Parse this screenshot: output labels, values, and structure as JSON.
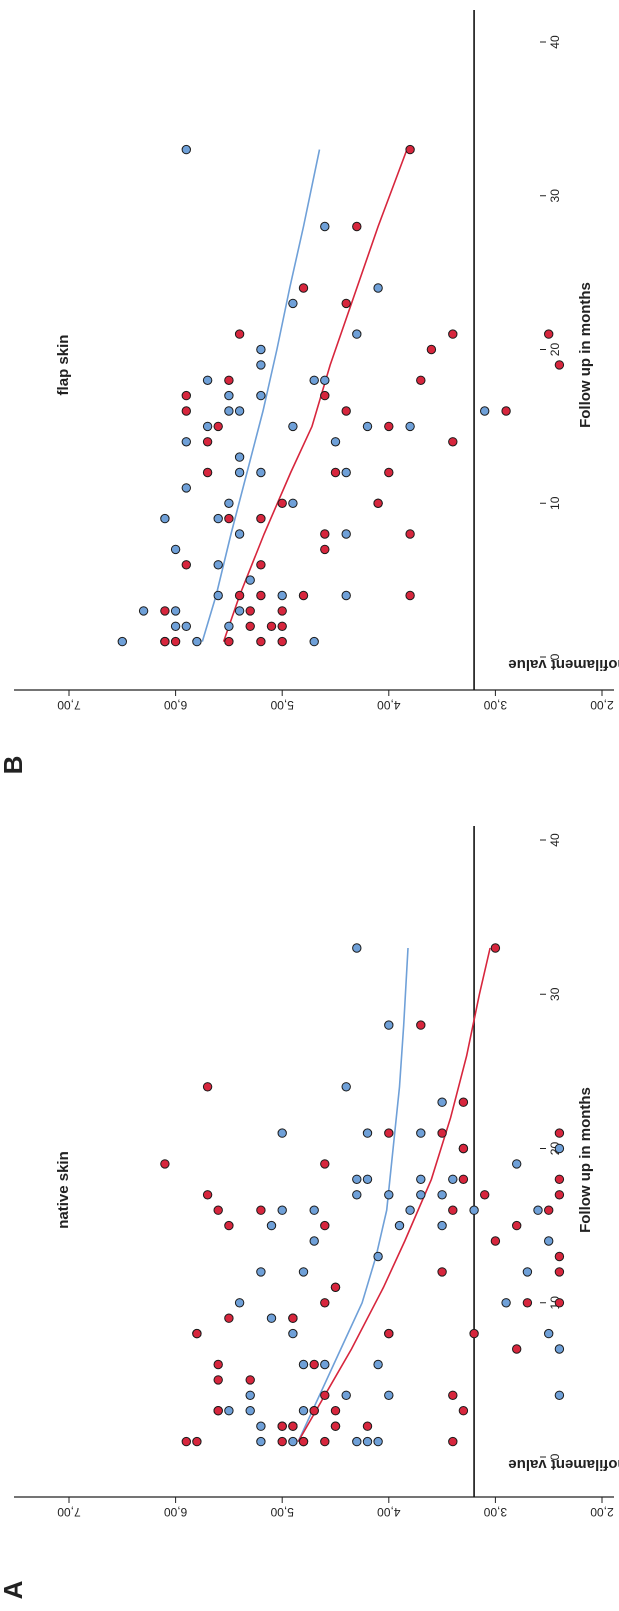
{
  "chart_data": [
    {
      "type": "scatter",
      "panel_label": "A",
      "title": "native skin",
      "xlabel": "Follow up in months",
      "ylabel": "Mean monofilament value",
      "xlim": [
        0,
        40
      ],
      "ylim": [
        2.0,
        7.5
      ],
      "xticks": [
        0,
        10,
        20,
        30,
        40
      ],
      "yticks": [
        2.0,
        3.0,
        4.0,
        5.0,
        6.0,
        7.0
      ],
      "xtick_labels": [
        "0",
        "10",
        "20",
        "30",
        "40"
      ],
      "ytick_labels": [
        "2,00",
        "3,00",
        "4,00",
        "5,00",
        "6,00",
        "7,00"
      ],
      "threshold_line": 3.2,
      "colors": {
        "blue": "#6fa0d8",
        "red": "#d7263d",
        "edge": "#1a1a1a",
        "axis": "#222222"
      },
      "series": [
        {
          "color": "blue",
          "points": [
            [
              1,
              4.2
            ],
            [
              1,
              4.8
            ],
            [
              1,
              5.2
            ],
            [
              1,
              4.9
            ],
            [
              1,
              4.3
            ],
            [
              1,
              4.1
            ],
            [
              2,
              4.9
            ],
            [
              2,
              5.0
            ],
            [
              2,
              4.5
            ],
            [
              2,
              5.2
            ],
            [
              3,
              4.8
            ],
            [
              3,
              5.3
            ],
            [
              3,
              5.5
            ],
            [
              3,
              4.7
            ],
            [
              3,
              5.6
            ],
            [
              4,
              4.4
            ],
            [
              4,
              5.3
            ],
            [
              4,
              4.0
            ],
            [
              4,
              2.4
            ],
            [
              6,
              4.6
            ],
            [
              6,
              4.1
            ],
            [
              6,
              4.8
            ],
            [
              7,
              2.4
            ],
            [
              8,
              5.8
            ],
            [
              8,
              4.9
            ],
            [
              8,
              4.0
            ],
            [
              8,
              2.5
            ],
            [
              9,
              5.1
            ],
            [
              9,
              4.9
            ],
            [
              10,
              5.4
            ],
            [
              10,
              2.9
            ],
            [
              11,
              4.5
            ],
            [
              12,
              5.2
            ],
            [
              12,
              4.8
            ],
            [
              12,
              2.7
            ],
            [
              13,
              4.1
            ],
            [
              14,
              4.7
            ],
            [
              14,
              2.5
            ],
            [
              15,
              5.1
            ],
            [
              15,
              3.9
            ],
            [
              15,
              3.5
            ],
            [
              16,
              5.0
            ],
            [
              16,
              4.7
            ],
            [
              16,
              3.8
            ],
            [
              16,
              2.6
            ],
            [
              16,
              3.2
            ],
            [
              17,
              4.3
            ],
            [
              17,
              4.0
            ],
            [
              17,
              3.7
            ],
            [
              17,
              3.5
            ],
            [
              18,
              4.3
            ],
            [
              18,
              4.2
            ],
            [
              18,
              3.7
            ],
            [
              18,
              3.4
            ],
            [
              19,
              2.8
            ],
            [
              20,
              2.4
            ],
            [
              20,
              3.3
            ],
            [
              21,
              5.0
            ],
            [
              21,
              4.2
            ],
            [
              21,
              3.7
            ],
            [
              23,
              3.5
            ],
            [
              24,
              4.4
            ],
            [
              28,
              4.0
            ],
            [
              33,
              4.3
            ]
          ]
        },
        {
          "color": "red",
          "points": [
            [
              1,
              5.9
            ],
            [
              1,
              5.8
            ],
            [
              1,
              4.6
            ],
            [
              1,
              3.4
            ],
            [
              1,
              5.0
            ],
            [
              1,
              4.8
            ],
            [
              2,
              5.0
            ],
            [
              2,
              4.5
            ],
            [
              2,
              4.2
            ],
            [
              2,
              4.9
            ],
            [
              3,
              5.6
            ],
            [
              3,
              3.3
            ],
            [
              3,
              4.7
            ],
            [
              3,
              4.5
            ],
            [
              4,
              4.6
            ],
            [
              4,
              3.4
            ],
            [
              5,
              5.6
            ],
            [
              5,
              5.3
            ],
            [
              6,
              5.6
            ],
            [
              6,
              4.7
            ],
            [
              7,
              2.8
            ],
            [
              8,
              5.8
            ],
            [
              8,
              4.0
            ],
            [
              8,
              3.2
            ],
            [
              9,
              5.5
            ],
            [
              9,
              4.9
            ],
            [
              10,
              4.6
            ],
            [
              10,
              2.7
            ],
            [
              10,
              2.4
            ],
            [
              11,
              4.5
            ],
            [
              12,
              3.5
            ],
            [
              12,
              2.4
            ],
            [
              13,
              2.4
            ],
            [
              14,
              3.0
            ],
            [
              15,
              5.5
            ],
            [
              15,
              4.6
            ],
            [
              15,
              2.8
            ],
            [
              16,
              5.6
            ],
            [
              16,
              5.2
            ],
            [
              16,
              3.4
            ],
            [
              16,
              2.5
            ],
            [
              17,
              5.7
            ],
            [
              17,
              3.1
            ],
            [
              17,
              2.4
            ],
            [
              18,
              3.3
            ],
            [
              18,
              2.4
            ],
            [
              19,
              6.1
            ],
            [
              19,
              4.6
            ],
            [
              20,
              3.3
            ],
            [
              21,
              4.0
            ],
            [
              21,
              3.5
            ],
            [
              21,
              2.4
            ],
            [
              23,
              3.3
            ],
            [
              24,
              5.7
            ],
            [
              28,
              3.7
            ],
            [
              33,
              3.0
            ]
          ]
        }
      ],
      "fit_lines": [
        {
          "color": "blue",
          "points": [
            [
              1,
              4.85
            ],
            [
              4,
              4.65
            ],
            [
              7,
              4.45
            ],
            [
              10,
              4.25
            ],
            [
              13,
              4.12
            ],
            [
              16,
              4.02
            ],
            [
              20,
              3.96
            ],
            [
              24,
              3.9
            ],
            [
              28,
              3.86
            ],
            [
              33,
              3.82
            ]
          ]
        },
        {
          "color": "red",
          "points": [
            [
              1,
              4.85
            ],
            [
              4,
              4.6
            ],
            [
              7,
              4.35
            ],
            [
              11,
              4.05
            ],
            [
              14,
              3.85
            ],
            [
              18,
              3.6
            ],
            [
              22,
              3.42
            ],
            [
              26,
              3.27
            ],
            [
              30,
              3.15
            ],
            [
              33,
              3.05
            ]
          ]
        }
      ]
    },
    {
      "type": "scatter",
      "panel_label": "B",
      "title": "flap skin",
      "xlabel": "Follow up in months",
      "ylabel": "Mean monofilament value",
      "xlim": [
        0,
        40
      ],
      "ylim": [
        2.0,
        7.5
      ],
      "xticks": [
        0,
        10,
        20,
        30,
        40
      ],
      "yticks": [
        2.0,
        3.0,
        4.0,
        5.0,
        6.0,
        7.0
      ],
      "xtick_labels": [
        "0",
        "10",
        "20",
        "30",
        "40"
      ],
      "ytick_labels": [
        "2,00",
        "3,00",
        "4,00",
        "5,00",
        "6,00",
        "7,00"
      ],
      "threshold_line": 3.2,
      "colors": {
        "blue": "#6fa0d8",
        "red": "#d7263d",
        "edge": "#1a1a1a",
        "axis": "#222222"
      },
      "series": [
        {
          "color": "blue",
          "points": [
            [
              1,
              6.5
            ],
            [
              1,
              6.1
            ],
            [
              1,
              5.8
            ],
            [
              1,
              4.7
            ],
            [
              2,
              6.0
            ],
            [
              2,
              5.5
            ],
            [
              2,
              5.9
            ],
            [
              3,
              6.3
            ],
            [
              3,
              6.0
            ],
            [
              3,
              5.4
            ],
            [
              4,
              5.6
            ],
            [
              4,
              5.0
            ],
            [
              4,
              4.4
            ],
            [
              5,
              5.3
            ],
            [
              6,
              5.6
            ],
            [
              7,
              6.0
            ],
            [
              8,
              5.4
            ],
            [
              8,
              4.4
            ],
            [
              9,
              6.1
            ],
            [
              9,
              5.6
            ],
            [
              10,
              5.5
            ],
            [
              10,
              4.9
            ],
            [
              10,
              4.1
            ],
            [
              11,
              5.9
            ],
            [
              12,
              5.4
            ],
            [
              12,
              5.2
            ],
            [
              12,
              4.4
            ],
            [
              13,
              5.4
            ],
            [
              14,
              5.9
            ],
            [
              14,
              4.5
            ],
            [
              15,
              5.7
            ],
            [
              15,
              4.9
            ],
            [
              15,
              4.2
            ],
            [
              15,
              3.8
            ],
            [
              16,
              5.5
            ],
            [
              16,
              5.4
            ],
            [
              16,
              3.1
            ],
            [
              17,
              5.5
            ],
            [
              17,
              5.2
            ],
            [
              18,
              5.7
            ],
            [
              18,
              4.7
            ],
            [
              18,
              4.6
            ],
            [
              19,
              5.2
            ],
            [
              20,
              5.2
            ],
            [
              21,
              4.3
            ],
            [
              23,
              4.9
            ],
            [
              24,
              4.1
            ],
            [
              28,
              4.6
            ],
            [
              33,
              5.9
            ]
          ]
        },
        {
          "color": "red",
          "points": [
            [
              1,
              6.1
            ],
            [
              1,
              6.0
            ],
            [
              1,
              5.5
            ],
            [
              1,
              5.2
            ],
            [
              1,
              5.0
            ],
            [
              2,
              5.3
            ],
            [
              2,
              5.1
            ],
            [
              2,
              5.0
            ],
            [
              3,
              6.1
            ],
            [
              3,
              5.3
            ],
            [
              3,
              5.0
            ],
            [
              4,
              5.4
            ],
            [
              4,
              5.2
            ],
            [
              4,
              4.8
            ],
            [
              4,
              3.8
            ],
            [
              6,
              5.9
            ],
            [
              6,
              5.2
            ],
            [
              7,
              4.6
            ],
            [
              8,
              4.6
            ],
            [
              8,
              3.8
            ],
            [
              9,
              5.5
            ],
            [
              9,
              5.2
            ],
            [
              10,
              5.0
            ],
            [
              10,
              4.1
            ],
            [
              12,
              5.7
            ],
            [
              12,
              4.5
            ],
            [
              12,
              4.0
            ],
            [
              14,
              5.7
            ],
            [
              14,
              3.4
            ],
            [
              15,
              5.6
            ],
            [
              15,
              4.0
            ],
            [
              16,
              5.9
            ],
            [
              16,
              4.4
            ],
            [
              16,
              2.9
            ],
            [
              17,
              5.9
            ],
            [
              17,
              4.6
            ],
            [
              18,
              5.5
            ],
            [
              18,
              3.7
            ],
            [
              19,
              2.4
            ],
            [
              20,
              3.6
            ],
            [
              21,
              5.4
            ],
            [
              21,
              3.4
            ],
            [
              21,
              2.5
            ],
            [
              23,
              4.4
            ],
            [
              24,
              4.8
            ],
            [
              28,
              4.3
            ],
            [
              33,
              3.8
            ]
          ]
        }
      ],
      "fit_lines": [
        {
          "color": "blue",
          "points": [
            [
              1,
              5.75
            ],
            [
              4,
              5.62
            ],
            [
              8,
              5.48
            ],
            [
              12,
              5.33
            ],
            [
              16,
              5.18
            ],
            [
              20,
              5.05
            ],
            [
              24,
              4.93
            ],
            [
              28,
              4.8
            ],
            [
              33,
              4.65
            ]
          ]
        },
        {
          "color": "red",
          "points": [
            [
              1,
              5.55
            ],
            [
              4,
              5.4
            ],
            [
              8,
              5.17
            ],
            [
              12,
              4.92
            ],
            [
              15,
              4.72
            ],
            [
              19,
              4.55
            ],
            [
              23,
              4.35
            ],
            [
              28,
              4.1
            ],
            [
              33,
              3.83
            ]
          ]
        }
      ]
    }
  ]
}
